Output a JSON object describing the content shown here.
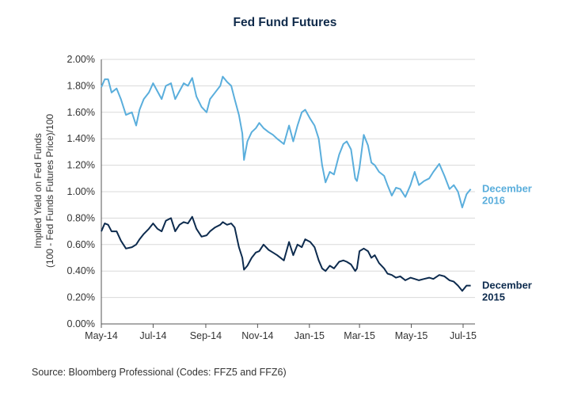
{
  "chart_data": {
    "type": "line",
    "title": "Fed Fund Futures",
    "ylabel_line1": "Implied Yield on Fed Funds",
    "ylabel_line2": "(100 - Fed Funds Futures Price)/100",
    "xlabel": "",
    "x_ticks": [
      "May-14",
      "Jul-14",
      "Sep-14",
      "Nov-14",
      "Jan-15",
      "Mar-15",
      "May-15",
      "Jul-15"
    ],
    "y_ticks": [
      "0.00%",
      "0.20%",
      "0.40%",
      "0.60%",
      "0.80%",
      "1.00%",
      "1.20%",
      "1.40%",
      "1.60%",
      "1.80%",
      "2.00%"
    ],
    "ylim": [
      0,
      2.0
    ],
    "x_range": [
      "2014-05-01",
      "2015-07-15"
    ],
    "grid": true,
    "series": [
      {
        "name": "December 2016",
        "label_lines": [
          "December",
          "2016"
        ],
        "color": "#5aaedc",
        "points": [
          [
            "2014-05-01",
            1.79
          ],
          [
            "2014-05-05",
            1.85
          ],
          [
            "2014-05-09",
            1.85
          ],
          [
            "2014-05-13",
            1.75
          ],
          [
            "2014-05-19",
            1.78
          ],
          [
            "2014-05-24",
            1.7
          ],
          [
            "2014-05-30",
            1.58
          ],
          [
            "2014-06-06",
            1.6
          ],
          [
            "2014-06-11",
            1.5
          ],
          [
            "2014-06-15",
            1.62
          ],
          [
            "2014-06-20",
            1.7
          ],
          [
            "2014-06-26",
            1.75
          ],
          [
            "2014-07-01",
            1.82
          ],
          [
            "2014-07-06",
            1.76
          ],
          [
            "2014-07-11",
            1.7
          ],
          [
            "2014-07-16",
            1.8
          ],
          [
            "2014-07-22",
            1.82
          ],
          [
            "2014-07-27",
            1.7
          ],
          [
            "2014-08-01",
            1.76
          ],
          [
            "2014-08-06",
            1.82
          ],
          [
            "2014-08-11",
            1.8
          ],
          [
            "2014-08-16",
            1.86
          ],
          [
            "2014-08-21",
            1.72
          ],
          [
            "2014-08-27",
            1.64
          ],
          [
            "2014-09-02",
            1.6
          ],
          [
            "2014-09-06",
            1.7
          ],
          [
            "2014-09-12",
            1.75
          ],
          [
            "2014-09-18",
            1.8
          ],
          [
            "2014-09-21",
            1.87
          ],
          [
            "2014-09-26",
            1.83
          ],
          [
            "2014-10-01",
            1.8
          ],
          [
            "2014-10-05",
            1.7
          ],
          [
            "2014-10-10",
            1.58
          ],
          [
            "2014-10-14",
            1.44
          ],
          [
            "2014-10-16",
            1.24
          ],
          [
            "2014-10-20",
            1.38
          ],
          [
            "2014-10-25",
            1.45
          ],
          [
            "2014-10-30",
            1.48
          ],
          [
            "2014-11-03",
            1.52
          ],
          [
            "2014-11-08",
            1.48
          ],
          [
            "2014-11-14",
            1.45
          ],
          [
            "2014-11-19",
            1.43
          ],
          [
            "2014-11-24",
            1.4
          ],
          [
            "2014-12-02",
            1.36
          ],
          [
            "2014-12-08",
            1.5
          ],
          [
            "2014-12-13",
            1.38
          ],
          [
            "2014-12-18",
            1.5
          ],
          [
            "2014-12-23",
            1.6
          ],
          [
            "2014-12-27",
            1.62
          ],
          [
            "2015-01-02",
            1.55
          ],
          [
            "2015-01-07",
            1.5
          ],
          [
            "2015-01-12",
            1.4
          ],
          [
            "2015-01-16",
            1.2
          ],
          [
            "2015-01-20",
            1.07
          ],
          [
            "2015-01-25",
            1.15
          ],
          [
            "2015-01-30",
            1.13
          ],
          [
            "2015-02-05",
            1.28
          ],
          [
            "2015-02-10",
            1.36
          ],
          [
            "2015-02-14",
            1.38
          ],
          [
            "2015-02-19",
            1.32
          ],
          [
            "2015-02-24",
            1.1
          ],
          [
            "2015-02-26",
            1.08
          ],
          [
            "2015-03-01",
            1.18
          ],
          [
            "2015-03-06",
            1.43
          ],
          [
            "2015-03-11",
            1.35
          ],
          [
            "2015-03-15",
            1.22
          ],
          [
            "2015-03-19",
            1.2
          ],
          [
            "2015-03-24",
            1.15
          ],
          [
            "2015-03-30",
            1.12
          ],
          [
            "2015-04-03",
            1.05
          ],
          [
            "2015-04-08",
            0.97
          ],
          [
            "2015-04-13",
            1.03
          ],
          [
            "2015-04-18",
            1.02
          ],
          [
            "2015-04-24",
            0.96
          ],
          [
            "2015-04-30",
            1.05
          ],
          [
            "2015-05-05",
            1.15
          ],
          [
            "2015-05-10",
            1.05
          ],
          [
            "2015-05-16",
            1.08
          ],
          [
            "2015-05-22",
            1.1
          ],
          [
            "2015-05-27",
            1.15
          ],
          [
            "2015-06-03",
            1.21
          ],
          [
            "2015-06-09",
            1.12
          ],
          [
            "2015-06-15",
            1.02
          ],
          [
            "2015-06-20",
            1.05
          ],
          [
            "2015-06-25",
            1.0
          ],
          [
            "2015-06-30",
            0.88
          ],
          [
            "2015-07-05",
            0.98
          ],
          [
            "2015-07-10",
            1.02
          ]
        ]
      },
      {
        "name": "December 2015",
        "label_lines": [
          "December",
          "2015"
        ],
        "color": "#0d2b4e",
        "points": [
          [
            "2014-05-01",
            0.7
          ],
          [
            "2014-05-05",
            0.76
          ],
          [
            "2014-05-09",
            0.75
          ],
          [
            "2014-05-13",
            0.7
          ],
          [
            "2014-05-19",
            0.7
          ],
          [
            "2014-05-24",
            0.63
          ],
          [
            "2014-05-30",
            0.57
          ],
          [
            "2014-06-06",
            0.58
          ],
          [
            "2014-06-11",
            0.6
          ],
          [
            "2014-06-15",
            0.64
          ],
          [
            "2014-06-20",
            0.68
          ],
          [
            "2014-06-26",
            0.72
          ],
          [
            "2014-07-01",
            0.76
          ],
          [
            "2014-07-06",
            0.72
          ],
          [
            "2014-07-11",
            0.7
          ],
          [
            "2014-07-16",
            0.78
          ],
          [
            "2014-07-22",
            0.8
          ],
          [
            "2014-07-27",
            0.7
          ],
          [
            "2014-08-01",
            0.75
          ],
          [
            "2014-08-06",
            0.77
          ],
          [
            "2014-08-11",
            0.76
          ],
          [
            "2014-08-16",
            0.81
          ],
          [
            "2014-08-21",
            0.72
          ],
          [
            "2014-08-27",
            0.66
          ],
          [
            "2014-09-02",
            0.67
          ],
          [
            "2014-09-06",
            0.7
          ],
          [
            "2014-09-12",
            0.73
          ],
          [
            "2014-09-18",
            0.75
          ],
          [
            "2014-09-21",
            0.77
          ],
          [
            "2014-09-26",
            0.75
          ],
          [
            "2014-10-01",
            0.76
          ],
          [
            "2014-10-05",
            0.73
          ],
          [
            "2014-10-10",
            0.58
          ],
          [
            "2014-10-14",
            0.5
          ],
          [
            "2014-10-16",
            0.41
          ],
          [
            "2014-10-20",
            0.44
          ],
          [
            "2014-10-25",
            0.5
          ],
          [
            "2014-10-30",
            0.54
          ],
          [
            "2014-11-03",
            0.55
          ],
          [
            "2014-11-08",
            0.6
          ],
          [
            "2014-11-14",
            0.56
          ],
          [
            "2014-11-19",
            0.54
          ],
          [
            "2014-11-24",
            0.52
          ],
          [
            "2014-12-02",
            0.48
          ],
          [
            "2014-12-08",
            0.62
          ],
          [
            "2014-12-13",
            0.52
          ],
          [
            "2014-12-18",
            0.6
          ],
          [
            "2014-12-23",
            0.58
          ],
          [
            "2014-12-27",
            0.64
          ],
          [
            "2015-01-02",
            0.62
          ],
          [
            "2015-01-07",
            0.58
          ],
          [
            "2015-01-12",
            0.48
          ],
          [
            "2015-01-16",
            0.42
          ],
          [
            "2015-01-20",
            0.4
          ],
          [
            "2015-01-25",
            0.44
          ],
          [
            "2015-01-30",
            0.42
          ],
          [
            "2015-02-05",
            0.47
          ],
          [
            "2015-02-10",
            0.48
          ],
          [
            "2015-02-14",
            0.47
          ],
          [
            "2015-02-19",
            0.45
          ],
          [
            "2015-02-24",
            0.4
          ],
          [
            "2015-02-26",
            0.42
          ],
          [
            "2015-03-01",
            0.55
          ],
          [
            "2015-03-06",
            0.57
          ],
          [
            "2015-03-11",
            0.55
          ],
          [
            "2015-03-15",
            0.5
          ],
          [
            "2015-03-19",
            0.52
          ],
          [
            "2015-03-24",
            0.46
          ],
          [
            "2015-03-30",
            0.42
          ],
          [
            "2015-04-03",
            0.38
          ],
          [
            "2015-04-08",
            0.37
          ],
          [
            "2015-04-13",
            0.35
          ],
          [
            "2015-04-18",
            0.36
          ],
          [
            "2015-04-24",
            0.33
          ],
          [
            "2015-04-30",
            0.35
          ],
          [
            "2015-05-05",
            0.34
          ],
          [
            "2015-05-10",
            0.33
          ],
          [
            "2015-05-16",
            0.34
          ],
          [
            "2015-05-22",
            0.35
          ],
          [
            "2015-05-27",
            0.34
          ],
          [
            "2015-06-03",
            0.37
          ],
          [
            "2015-06-09",
            0.36
          ],
          [
            "2015-06-15",
            0.33
          ],
          [
            "2015-06-20",
            0.32
          ],
          [
            "2015-06-25",
            0.29
          ],
          [
            "2015-06-30",
            0.25
          ],
          [
            "2015-07-05",
            0.29
          ],
          [
            "2015-07-10",
            0.29
          ]
        ]
      }
    ]
  },
  "source_note": "Source: Bloomberg Professional (Codes: FFZ5 and FFZ6)"
}
